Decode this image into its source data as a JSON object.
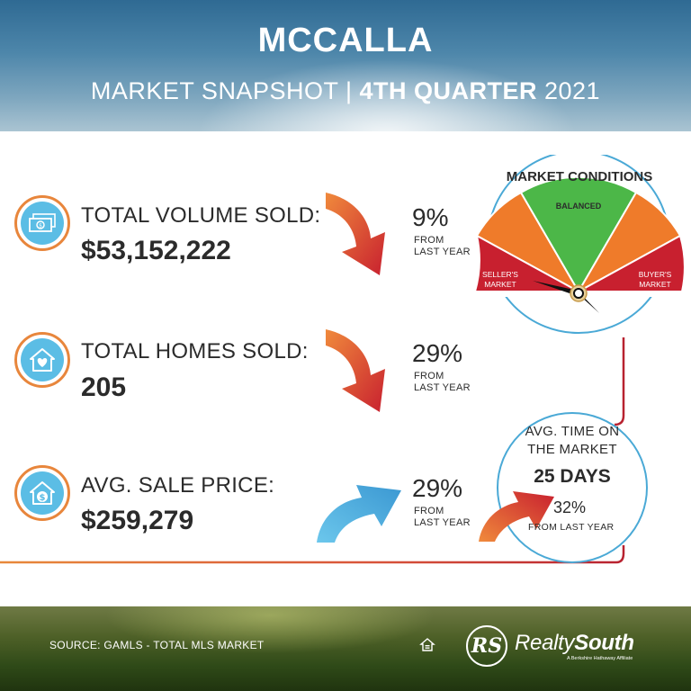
{
  "header": {
    "title": "MCCALLA",
    "subtitle_left": "MARKET SNAPSHOT | ",
    "subtitle_bold": "4TH QUARTER",
    "subtitle_right": " 2021"
  },
  "stats": [
    {
      "label": "TOTAL VOLUME SOLD:",
      "value": "$53,152,222",
      "change": "9%",
      "change_note_1": "FROM",
      "change_note_2": "LAST YEAR",
      "direction": "down",
      "icon": "money-icon"
    },
    {
      "label": "TOTAL HOMES SOLD:",
      "value": "205",
      "change": "29%",
      "change_note_1": "FROM",
      "change_note_2": "LAST YEAR",
      "direction": "down",
      "icon": "house-heart-icon"
    },
    {
      "label": "AVG. SALE PRICE:",
      "value": "$259,279",
      "change": "29%",
      "change_note_1": "FROM",
      "change_note_2": "LAST YEAR",
      "direction": "up",
      "icon": "house-dollar-icon"
    }
  ],
  "market_conditions": {
    "title": "MARKET CONDITIONS",
    "balanced": "BALANCED",
    "sellers_1": "SELLER'S",
    "sellers_2": "MARKET",
    "buyers_1": "BUYER'S",
    "buyers_2": "MARKET",
    "colors": {
      "seller": "#c8202f",
      "mid": "#ef7b2a",
      "balanced": "#4cb748"
    }
  },
  "time_on_market": {
    "title_1": "AVG. TIME ON",
    "title_2": "THE MARKET",
    "days": "25 DAYS",
    "change": "32%",
    "change_note": "FROM LAST YEAR",
    "direction": "up"
  },
  "footer": {
    "source": "SOURCE: GAMLS - TOTAL MLS MARKET",
    "logo_mark": "RS",
    "logo_word_regular": "Realty",
    "logo_word_bold": "South",
    "logo_tagline": "A Berkshire Hathaway Affiliate"
  },
  "colors": {
    "accent_orange": "#ef7b2a",
    "accent_red": "#c8202f",
    "accent_blue": "#4aa9d6"
  }
}
